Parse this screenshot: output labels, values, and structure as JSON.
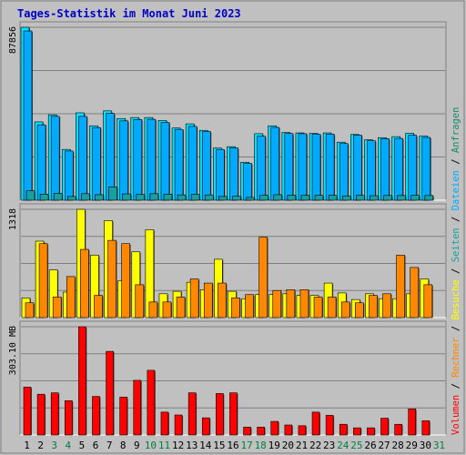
{
  "title": "Tages-Statistik im Monat Juni 2023",
  "colors": {
    "anfragen": "#00e0ff",
    "dateien": "#00aaff",
    "seiten": "#1a9e9e",
    "besuche": "#ffff00",
    "rechner": "#ff8800",
    "volumen": "#ff0000",
    "axis_hits": "#000000",
    "weekend": "#008040"
  },
  "legend": {
    "volumen": "Volumen",
    "rechner": "Rechner",
    "besuche": "Besuche",
    "seiten": "Seiten",
    "dateien": "Dateien",
    "anfragen": "Anfragen",
    "sep": "/"
  },
  "chart_data": [
    {
      "type": "bar",
      "panel": "hits",
      "ymax_label": "87856",
      "ylim": [
        0,
        87856
      ],
      "categories": [
        "1",
        "2",
        "3",
        "4",
        "5",
        "6",
        "7",
        "8",
        "9",
        "10",
        "11",
        "12",
        "13",
        "14",
        "15",
        "16",
        "17",
        "18",
        "19",
        "20",
        "21",
        "22",
        "23",
        "24",
        "25",
        "26",
        "27",
        "28",
        "29",
        "30",
        "31"
      ],
      "weekend_days": [
        "3",
        "4",
        "10",
        "11",
        "17",
        "18",
        "24",
        "25",
        "31"
      ],
      "series": [
        {
          "name": "Anfragen",
          "key": "anfragen",
          "values": [
            87856,
            39800,
            43400,
            25800,
            44400,
            37800,
            45400,
            41500,
            42000,
            42000,
            40500,
            36700,
            38800,
            35500,
            26500,
            27200,
            19300,
            33800,
            37800,
            34400,
            34200,
            34000,
            34200,
            29500,
            33400,
            30700,
            31800,
            32300,
            34000,
            32600,
            0
          ]
        },
        {
          "name": "Dateien",
          "key": "dateien",
          "values": [
            86000,
            38300,
            42600,
            25000,
            42600,
            36900,
            44100,
            40300,
            41000,
            41100,
            39500,
            36000,
            37500,
            34900,
            25800,
            26600,
            18700,
            32500,
            37000,
            33900,
            33800,
            33500,
            33600,
            28800,
            33100,
            30200,
            31300,
            31400,
            33000,
            31900,
            0
          ]
        },
        {
          "name": "Seiten",
          "key": "seiten",
          "values": [
            4800,
            3100,
            3500,
            1900,
            3300,
            2800,
            6800,
            3200,
            3000,
            3300,
            3100,
            2700,
            3000,
            2700,
            1900,
            2000,
            1400,
            2500,
            2800,
            2600,
            2500,
            2500,
            2500,
            2200,
            2500,
            2300,
            2400,
            2400,
            2500,
            2400,
            0
          ]
        }
      ]
    },
    {
      "type": "bar",
      "panel": "visits",
      "ymax_label": "1318",
      "ylim": [
        0,
        1318
      ],
      "series": [
        {
          "name": "Besuche",
          "key": "besuche",
          "values": [
            240,
            930,
            580,
            310,
            1318,
            760,
            1180,
            450,
            800,
            1070,
            290,
            320,
            430,
            340,
            710,
            320,
            230,
            280,
            280,
            290,
            270,
            270,
            420,
            300,
            220,
            290,
            230,
            230,
            290,
            470,
            0
          ]
        },
        {
          "name": "Rechner",
          "key": "rechner",
          "values": [
            180,
            900,
            250,
            500,
            830,
            270,
            940,
            900,
            400,
            190,
            190,
            250,
            470,
            420,
            420,
            240,
            280,
            980,
            330,
            340,
            340,
            250,
            250,
            190,
            180,
            270,
            290,
            760,
            610,
            400,
            0
          ]
        }
      ]
    },
    {
      "type": "bar",
      "panel": "volume",
      "ymax_label": "303.10 MB",
      "unit": "MB",
      "ylim": [
        0,
        303.1
      ],
      "series": [
        {
          "name": "Volumen",
          "key": "volumen",
          "values": [
            134,
            114,
            118,
            96,
            303,
            108,
            234,
            106,
            153,
            181,
            64,
            56,
            118,
            48,
            116,
            118,
            22,
            22,
            38,
            28,
            26,
            64,
            55,
            30,
            20,
            20,
            47,
            30,
            73,
            40,
            0
          ]
        }
      ]
    }
  ]
}
